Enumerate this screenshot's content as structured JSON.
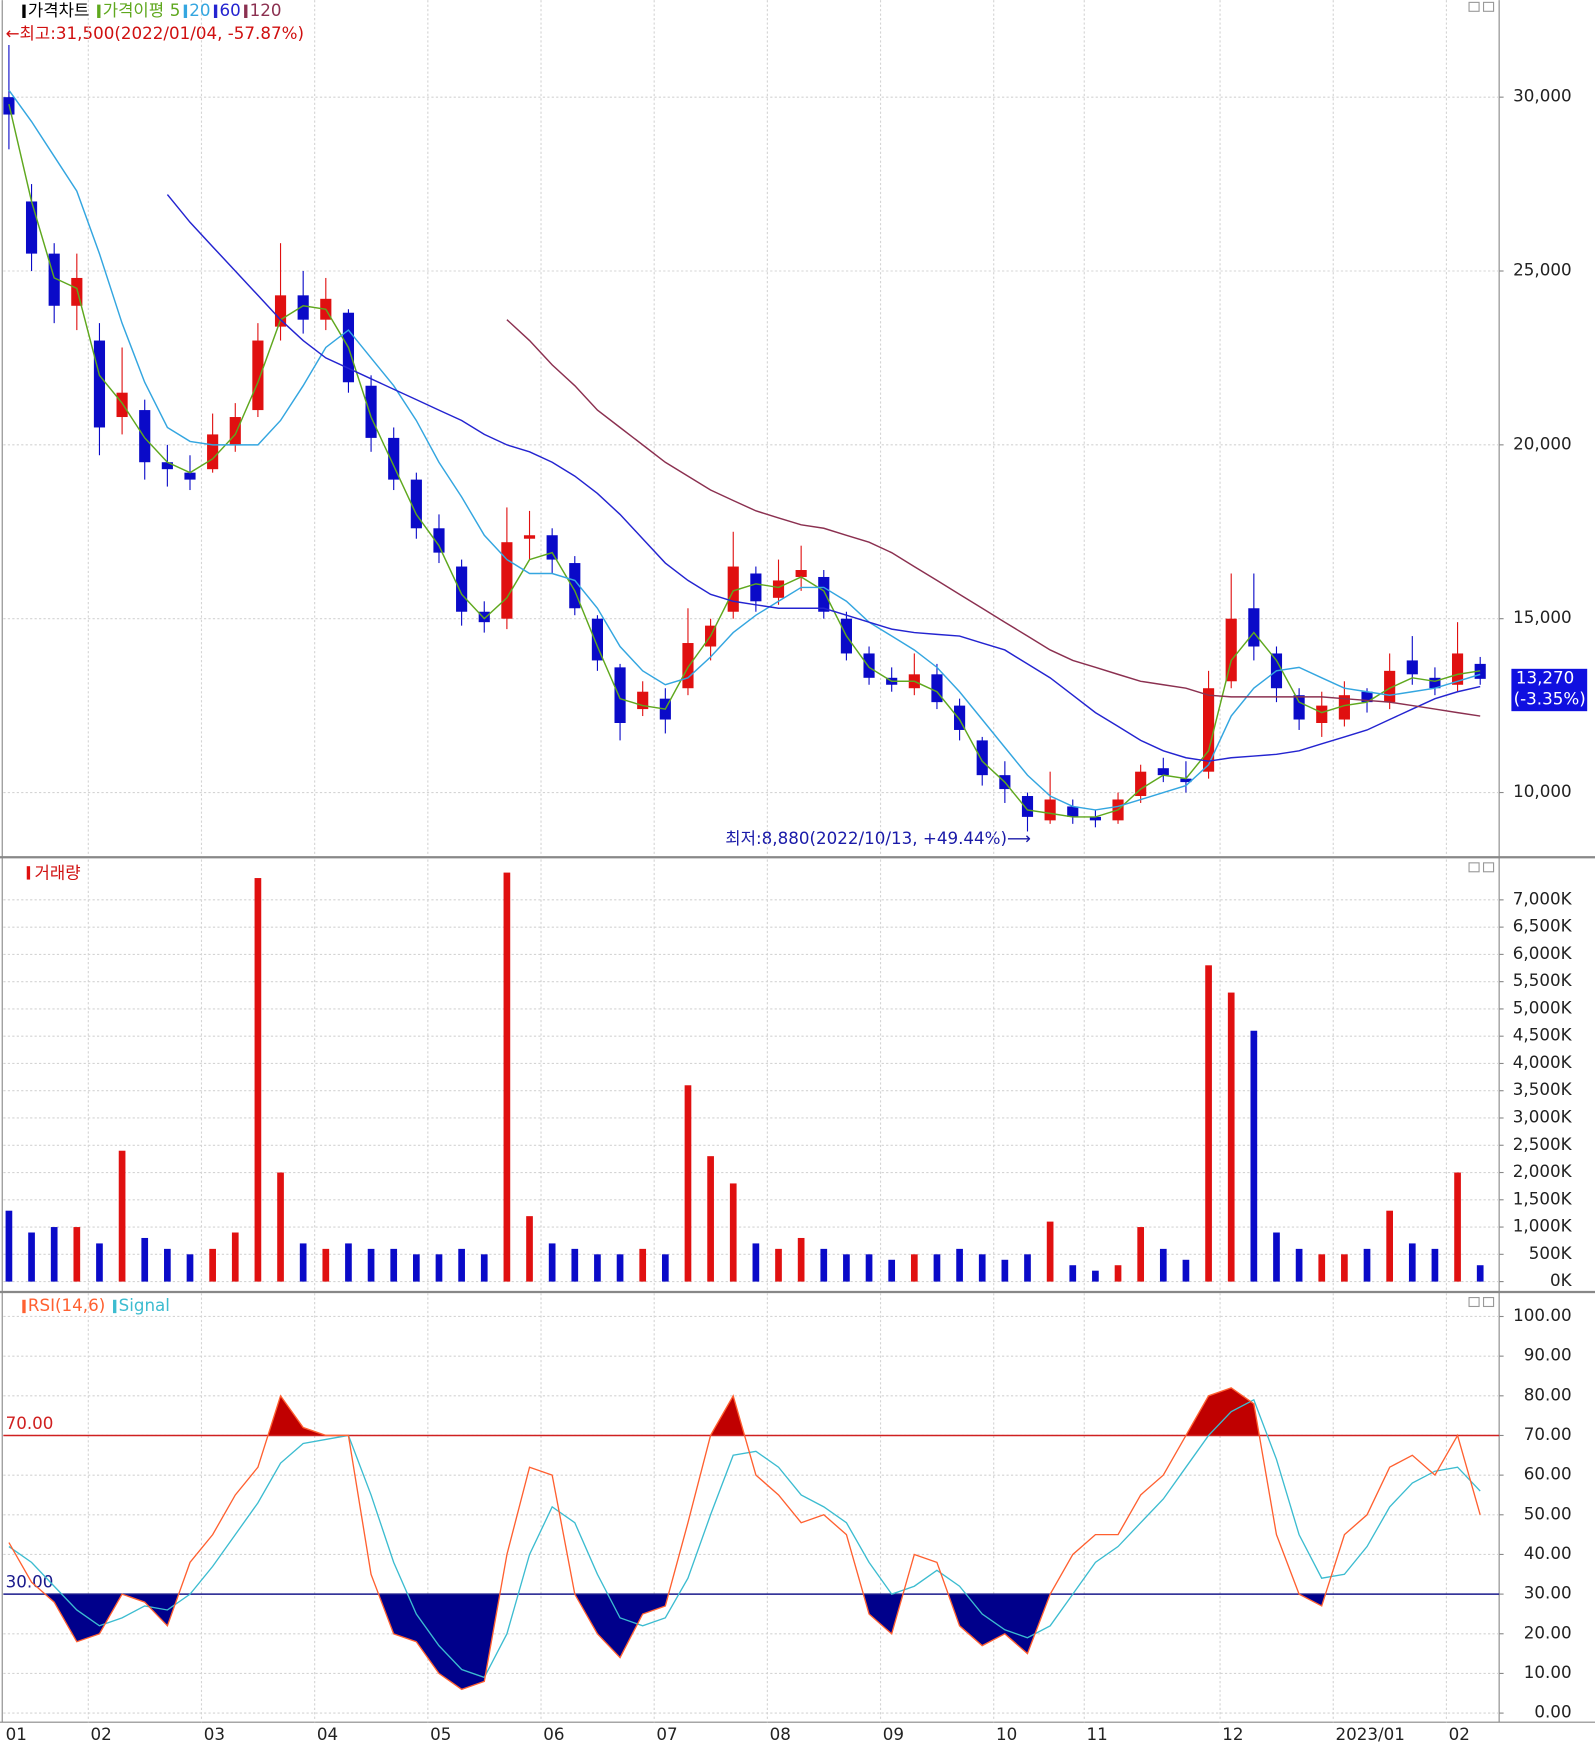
{
  "chart_data": [
    {
      "type": "candlestick",
      "name": "가격차트",
      "ma_label": "가격이평",
      "annotation_high": "←최고:31,500(2022/01/04, -57.87%)",
      "annotation_low": "최저:8,880(2022/10/13, +49.44%)⟶",
      "last_price": {
        "value": 13270,
        "label": "13,270"
      },
      "last_change": {
        "value": -3.35,
        "label": "(-3.35%)"
      },
      "up_color": "#e01010",
      "down_color": "#0a0ac8",
      "grid": true,
      "ylim": [
        8170,
        32790
      ],
      "yticks": [
        {
          "value": 10000,
          "label": "10,000"
        },
        {
          "value": 15000,
          "label": "15,000"
        },
        {
          "value": 20000,
          "label": "20,000"
        },
        {
          "value": 25000,
          "label": "25,000"
        },
        {
          "value": 30000,
          "label": "30,000"
        }
      ],
      "open": [
        30000,
        27000,
        25500,
        24000,
        23000,
        20800,
        21000,
        19500,
        19200,
        19300,
        20000,
        21000,
        23400,
        24300,
        23600,
        23800,
        21700,
        20200,
        19000,
        17600,
        16500,
        15200,
        15000,
        17300,
        17400,
        16600,
        15000,
        13600,
        12400,
        12700,
        13000,
        14200,
        15200,
        16300,
        15600,
        16200,
        16200,
        15000,
        14000,
        13300,
        13000,
        13400,
        12500,
        11500,
        10500,
        9900,
        9200,
        9600,
        9300,
        9200,
        9900,
        10700,
        10400,
        10600,
        13200,
        15300,
        14000,
        12800,
        12000,
        12100,
        12900,
        12600,
        13800,
        13300,
        13100,
        13700
      ],
      "high": [
        31500,
        27500,
        25800,
        25500,
        23500,
        22800,
        21300,
        20000,
        19700,
        20900,
        21200,
        23500,
        25800,
        25000,
        24800,
        23900,
        22000,
        20500,
        19200,
        18000,
        16700,
        15500,
        18200,
        18100,
        17600,
        16800,
        15100,
        13700,
        13200,
        13000,
        15300,
        15000,
        17500,
        16500,
        16700,
        17100,
        16400,
        15200,
        14200,
        13600,
        14000,
        13700,
        12700,
        11600,
        10900,
        10000,
        10600,
        9800,
        9500,
        10000,
        10800,
        11000,
        10900,
        13500,
        16300,
        16300,
        14200,
        13000,
        12900,
        13200,
        13000,
        14000,
        14500,
        13600,
        14900,
        13900
      ],
      "low": [
        28500,
        25000,
        23500,
        23300,
        19700,
        20300,
        19000,
        18800,
        18700,
        19200,
        19800,
        20800,
        23000,
        23200,
        23300,
        21500,
        19800,
        18700,
        17300,
        16600,
        14800,
        14600,
        14700,
        16700,
        16300,
        15100,
        13500,
        11500,
        12200,
        11700,
        12800,
        13800,
        15000,
        15200,
        15400,
        15800,
        15000,
        13800,
        13100,
        12900,
        12800,
        12400,
        11500,
        10200,
        9700,
        8880,
        9100,
        9100,
        9000,
        9100,
        9700,
        10300,
        10000,
        10400,
        13000,
        13800,
        12600,
        11800,
        11600,
        11900,
        12300,
        12400,
        13100,
        12800,
        12900,
        13100
      ],
      "close": [
        29500,
        25500,
        24000,
        24800,
        20500,
        21500,
        19500,
        19300,
        19000,
        20300,
        20800,
        23000,
        24300,
        23600,
        24200,
        21800,
        20200,
        19000,
        17600,
        16900,
        15200,
        14900,
        17200,
        17400,
        16700,
        15300,
        13800,
        12000,
        12900,
        12100,
        14300,
        14800,
        16500,
        15500,
        16100,
        16400,
        15200,
        14000,
        13300,
        13100,
        13400,
        12600,
        11800,
        10500,
        10100,
        9300,
        9800,
        9300,
        9200,
        9800,
        10600,
        10500,
        10300,
        13000,
        15000,
        14200,
        13000,
        12100,
        12500,
        12800,
        12600,
        13500,
        13400,
        13000,
        14000,
        13270
      ],
      "series": [
        {
          "name": "5",
          "color": "#5fa81e",
          "values": [
            29800,
            27000,
            24800,
            24500,
            22000,
            21200,
            20200,
            19500,
            19200,
            19600,
            20300,
            21800,
            23600,
            24000,
            23900,
            22800,
            20800,
            19400,
            18000,
            17100,
            15700,
            15000,
            15600,
            16700,
            16900,
            15800,
            14200,
            12700,
            12500,
            12400,
            13600,
            14500,
            15800,
            16000,
            15900,
            16200,
            15800,
            14500,
            13600,
            13200,
            13200,
            12900,
            12100,
            10900,
            10300,
            9500,
            9400,
            9300,
            9300,
            9500,
            10100,
            10500,
            10400,
            11200,
            13800,
            14600,
            13800,
            12600,
            12300,
            12500,
            12600,
            13000,
            13300,
            13200,
            13400,
            13500
          ]
        },
        {
          "name": "20",
          "color": "#34a6e0",
          "values": [
            30200,
            29300,
            28300,
            27300,
            25500,
            23500,
            21800,
            20500,
            20100,
            20000,
            20000,
            20000,
            20700,
            21700,
            22800,
            23300,
            22500,
            21700,
            20700,
            19500,
            18500,
            17400,
            16700,
            16300,
            16300,
            16100,
            15300,
            14200,
            13500,
            13100,
            13300,
            13900,
            14600,
            15100,
            15500,
            15900,
            15900,
            15500,
            14900,
            14500,
            14100,
            13600,
            12900,
            12100,
            11300,
            10500,
            9900,
            9600,
            9500,
            9600,
            9800,
            10000,
            10200,
            10800,
            12200,
            13000,
            13500,
            13600,
            13300,
            13000,
            12900,
            12800,
            12900,
            13000,
            13200,
            13400
          ]
        },
        {
          "name": "60",
          "color": "#2424d0",
          "values": [
            null,
            null,
            null,
            null,
            null,
            null,
            null,
            27200,
            26400,
            25700,
            25000,
            24300,
            23600,
            23000,
            22500,
            22200,
            21900,
            21600,
            21300,
            21000,
            20700,
            20300,
            20000,
            19800,
            19500,
            19100,
            18600,
            18000,
            17300,
            16600,
            16100,
            15700,
            15500,
            15400,
            15300,
            15300,
            15300,
            15100,
            14900,
            14700,
            14600,
            14550,
            14500,
            14300,
            14100,
            13700,
            13300,
            12800,
            12300,
            11900,
            11500,
            11200,
            11000,
            10900,
            11000,
            11050,
            11100,
            11200,
            11400,
            11600,
            11800,
            12100,
            12400,
            12700,
            12900,
            13050
          ]
        },
        {
          "name": "120",
          "color": "#8b3050",
          "values": [
            null,
            null,
            null,
            null,
            null,
            null,
            null,
            null,
            null,
            null,
            null,
            null,
            null,
            null,
            null,
            null,
            null,
            null,
            null,
            null,
            null,
            null,
            23600,
            23000,
            22300,
            21700,
            21000,
            20500,
            20000,
            19500,
            19100,
            18700,
            18400,
            18100,
            17900,
            17700,
            17600,
            17400,
            17200,
            16900,
            16500,
            16100,
            15700,
            15300,
            14900,
            14500,
            14100,
            13800,
            13600,
            13400,
            13200,
            13100,
            13000,
            12800,
            12750,
            12750,
            12750,
            12750,
            12750,
            12700,
            12650,
            12600,
            12500,
            12400,
            12300,
            12200
          ]
        }
      ]
    },
    {
      "type": "bar",
      "title": "거래량",
      "color": "#e01010",
      "grid": true,
      "ylim": [
        -170,
        7740
      ],
      "yticks": [
        {
          "value": 0,
          "label": "0K"
        },
        {
          "value": 500,
          "label": "500K"
        },
        {
          "value": 1000,
          "label": "1,000K"
        },
        {
          "value": 1500,
          "label": "1,500K"
        },
        {
          "value": 2000,
          "label": "2,000K"
        },
        {
          "value": 2500,
          "label": "2,500K"
        },
        {
          "value": 3000,
          "label": "3,000K"
        },
        {
          "value": 3500,
          "label": "3,500K"
        },
        {
          "value": 4000,
          "label": "4,000K"
        },
        {
          "value": 4500,
          "label": "4,500K"
        },
        {
          "value": 5000,
          "label": "5,000K"
        },
        {
          "value": 5500,
          "label": "5,500K"
        },
        {
          "value": 6000,
          "label": "6,000K"
        },
        {
          "value": 6500,
          "label": "6,500K"
        },
        {
          "value": 7000,
          "label": "7,000K"
        }
      ],
      "values": [
        1300,
        900,
        1000,
        1000,
        700,
        2400,
        800,
        600,
        500,
        600,
        900,
        7400,
        2000,
        700,
        600,
        700,
        600,
        600,
        500,
        500,
        600,
        500,
        7500,
        1200,
        700,
        600,
        500,
        500,
        600,
        500,
        3600,
        2300,
        1800,
        700,
        600,
        800,
        600,
        500,
        500,
        400,
        500,
        500,
        600,
        500,
        400,
        500,
        1100,
        300,
        200,
        300,
        1000,
        600,
        400,
        5800,
        5300,
        4600,
        900,
        600,
        500,
        500,
        600,
        1300,
        700,
        600,
        2000,
        300
      ]
    },
    {
      "type": "line",
      "grid": true,
      "ylim": [
        -2.3,
        105.9
      ],
      "yticks": [
        {
          "value": 0,
          "label": "0.00"
        },
        {
          "value": 10,
          "label": "10.00"
        },
        {
          "value": 20,
          "label": "20.00"
        },
        {
          "value": 30,
          "label": "30.00"
        },
        {
          "value": 40,
          "label": "40.00"
        },
        {
          "value": 50,
          "label": "50.00"
        },
        {
          "value": 60,
          "label": "60.00"
        },
        {
          "value": 70,
          "label": "70.00"
        },
        {
          "value": 80,
          "label": "80.00"
        },
        {
          "value": 90,
          "label": "90.00"
        },
        {
          "value": 100,
          "label": "100.00"
        }
      ],
      "reference_lines": [
        {
          "value": 70,
          "label": "70.00",
          "color": "#d02020",
          "fill": "#c00000"
        },
        {
          "value": 30,
          "label": "30.00",
          "color": "#1a1a8c",
          "fill": "#00008b"
        }
      ],
      "categories": [
        "01",
        null,
        null,
        null,
        "02",
        null,
        null,
        null,
        null,
        "03",
        null,
        null,
        null,
        null,
        "04",
        null,
        null,
        null,
        null,
        "05",
        null,
        null,
        null,
        null,
        "06",
        null,
        null,
        null,
        null,
        "07",
        null,
        null,
        null,
        null,
        "08",
        null,
        null,
        null,
        null,
        "09",
        null,
        null,
        null,
        null,
        "10",
        null,
        null,
        null,
        "11",
        null,
        null,
        null,
        null,
        null,
        "12",
        null,
        null,
        null,
        null,
        "2023/01",
        null,
        null,
        null,
        null,
        "02",
        null
      ],
      "series": [
        {
          "name": "RSI(14,6)",
          "color": "#ff6030",
          "values": [
            43,
            33,
            28,
            18,
            20,
            30,
            28,
            22,
            38,
            45,
            55,
            62,
            80,
            72,
            70,
            70,
            35,
            20,
            18,
            10,
            6,
            8,
            40,
            62,
            60,
            30,
            20,
            14,
            25,
            27,
            48,
            70,
            80,
            60,
            55,
            48,
            50,
            45,
            25,
            20,
            40,
            38,
            22,
            17,
            20,
            15,
            30,
            40,
            45,
            45,
            55,
            60,
            70,
            80,
            82,
            78,
            45,
            30,
            27,
            45,
            50,
            62,
            65,
            60,
            70,
            50
          ]
        },
        {
          "name": "Signal",
          "color": "#3cbcd0",
          "values": [
            42,
            38,
            32,
            26,
            22,
            24,
            27,
            26,
            30,
            37,
            45,
            53,
            63,
            68,
            69,
            70,
            55,
            38,
            25,
            17,
            11,
            9,
            20,
            40,
            52,
            48,
            35,
            24,
            22,
            24,
            34,
            50,
            65,
            66,
            62,
            55,
            52,
            48,
            38,
            30,
            32,
            36,
            32,
            25,
            21,
            19,
            22,
            30,
            38,
            42,
            48,
            54,
            62,
            70,
            76,
            79,
            64,
            45,
            34,
            35,
            42,
            52,
            58,
            61,
            62,
            56
          ]
        }
      ]
    }
  ]
}
